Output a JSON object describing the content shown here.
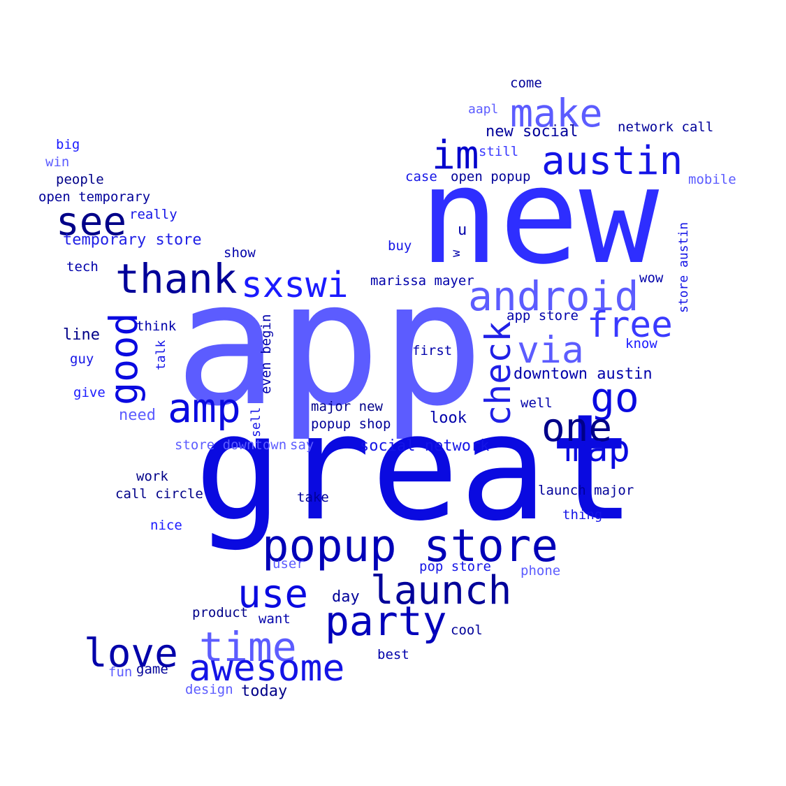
{
  "words": [
    {
      "text": "app",
      "color": "#5c5cff"
    },
    {
      "text": "new",
      "color": "#2e2eff"
    },
    {
      "text": "great",
      "color": "#0a0ae0"
    },
    {
      "text": "popup store",
      "color": "#0000b8"
    },
    {
      "text": "austin",
      "color": "#1414e6"
    },
    {
      "text": "make",
      "color": "#5c5cff"
    },
    {
      "text": "im",
      "color": "#0000cc"
    },
    {
      "text": "android",
      "color": "#5c5cff"
    },
    {
      "text": "free",
      "color": "#3a3aff"
    },
    {
      "text": "via",
      "color": "#5c5cff"
    },
    {
      "text": "check",
      "color": "#2020e6"
    },
    {
      "text": "go",
      "color": "#0a0ae0"
    },
    {
      "text": "one",
      "color": "#000088"
    },
    {
      "text": "map",
      "color": "#0a0ae0"
    },
    {
      "text": "launch",
      "color": "#000099"
    },
    {
      "text": "party",
      "color": "#0000bb"
    },
    {
      "text": "use",
      "color": "#0a0ae0"
    },
    {
      "text": "time",
      "color": "#5c5cff"
    },
    {
      "text": "awesome",
      "color": "#1414e6"
    },
    {
      "text": "love",
      "color": "#0000aa"
    },
    {
      "text": "amp",
      "color": "#0a0ae0"
    },
    {
      "text": "thank",
      "color": "#000099"
    },
    {
      "text": "sxswi",
      "color": "#1a1aff"
    },
    {
      "text": "good",
      "color": "#0a0ae0"
    },
    {
      "text": "see",
      "color": "#000088"
    },
    {
      "text": "come",
      "color": "#000099"
    },
    {
      "text": "aapl",
      "color": "#5c5cff"
    },
    {
      "text": "new social",
      "color": "#000099"
    },
    {
      "text": "network call",
      "color": "#000099"
    },
    {
      "text": "still",
      "color": "#3a3aff"
    },
    {
      "text": "case",
      "color": "#1414e6"
    },
    {
      "text": "open popup",
      "color": "#000099"
    },
    {
      "text": "mobile",
      "color": "#5c5cff"
    },
    {
      "text": "big",
      "color": "#1a1aff"
    },
    {
      "text": "win",
      "color": "#5c5cff"
    },
    {
      "text": "people",
      "color": "#000088"
    },
    {
      "text": "open temporary",
      "color": "#000099"
    },
    {
      "text": "really",
      "color": "#1414e6"
    },
    {
      "text": "temporary store",
      "color": "#2020e6"
    },
    {
      "text": "show",
      "color": "#0000aa"
    },
    {
      "text": "tech",
      "color": "#0000aa"
    },
    {
      "text": "u",
      "color": "#0000aa"
    },
    {
      "text": "w",
      "color": "#0000aa"
    },
    {
      "text": "buy",
      "color": "#1414e6"
    },
    {
      "text": "marissa mayer",
      "color": "#0000aa"
    },
    {
      "text": "wow",
      "color": "#0000aa"
    },
    {
      "text": "store austin",
      "color": "#1414e6"
    },
    {
      "text": "app store",
      "color": "#0000aa"
    },
    {
      "text": "know",
      "color": "#1a1aff"
    },
    {
      "text": "line",
      "color": "#000088"
    },
    {
      "text": "think",
      "color": "#0000aa"
    },
    {
      "text": "talk",
      "color": "#1414e6"
    },
    {
      "text": "even begin",
      "color": "#0000aa"
    },
    {
      "text": "first",
      "color": "#0000aa"
    },
    {
      "text": "guy",
      "color": "#1414e6"
    },
    {
      "text": "downtown austin",
      "color": "#0000aa"
    },
    {
      "text": "give",
      "color": "#1a1aff"
    },
    {
      "text": "need",
      "color": "#5c5cff"
    },
    {
      "text": "major new",
      "color": "#000088"
    },
    {
      "text": "well",
      "color": "#0000aa"
    },
    {
      "text": "sell",
      "color": "#1414e6"
    },
    {
      "text": "popup shop",
      "color": "#000099"
    },
    {
      "text": "look",
      "color": "#0000aa"
    },
    {
      "text": "store downtown",
      "color": "#5c5cff"
    },
    {
      "text": "say",
      "color": "#5c5cff"
    },
    {
      "text": "social network",
      "color": "#1414e6"
    },
    {
      "text": "work",
      "color": "#000088"
    },
    {
      "text": "call circle",
      "color": "#000088"
    },
    {
      "text": "take",
      "color": "#000099"
    },
    {
      "text": "launch major",
      "color": "#000099"
    },
    {
      "text": "thing",
      "color": "#1414e6"
    },
    {
      "text": "nice",
      "color": "#1a1aff"
    },
    {
      "text": "user",
      "color": "#5c5cff"
    },
    {
      "text": "pop store",
      "color": "#1414e6"
    },
    {
      "text": "phone",
      "color": "#5c5cff"
    },
    {
      "text": "day",
      "color": "#000099"
    },
    {
      "text": "product",
      "color": "#000088"
    },
    {
      "text": "want",
      "color": "#0000aa"
    },
    {
      "text": "cool",
      "color": "#000099"
    },
    {
      "text": "best",
      "color": "#0000aa"
    },
    {
      "text": "fun",
      "color": "#5c5cff"
    },
    {
      "text": "game",
      "color": "#000099"
    },
    {
      "text": "design",
      "color": "#5c5cff"
    },
    {
      "text": "today",
      "color": "#000088"
    }
  ]
}
